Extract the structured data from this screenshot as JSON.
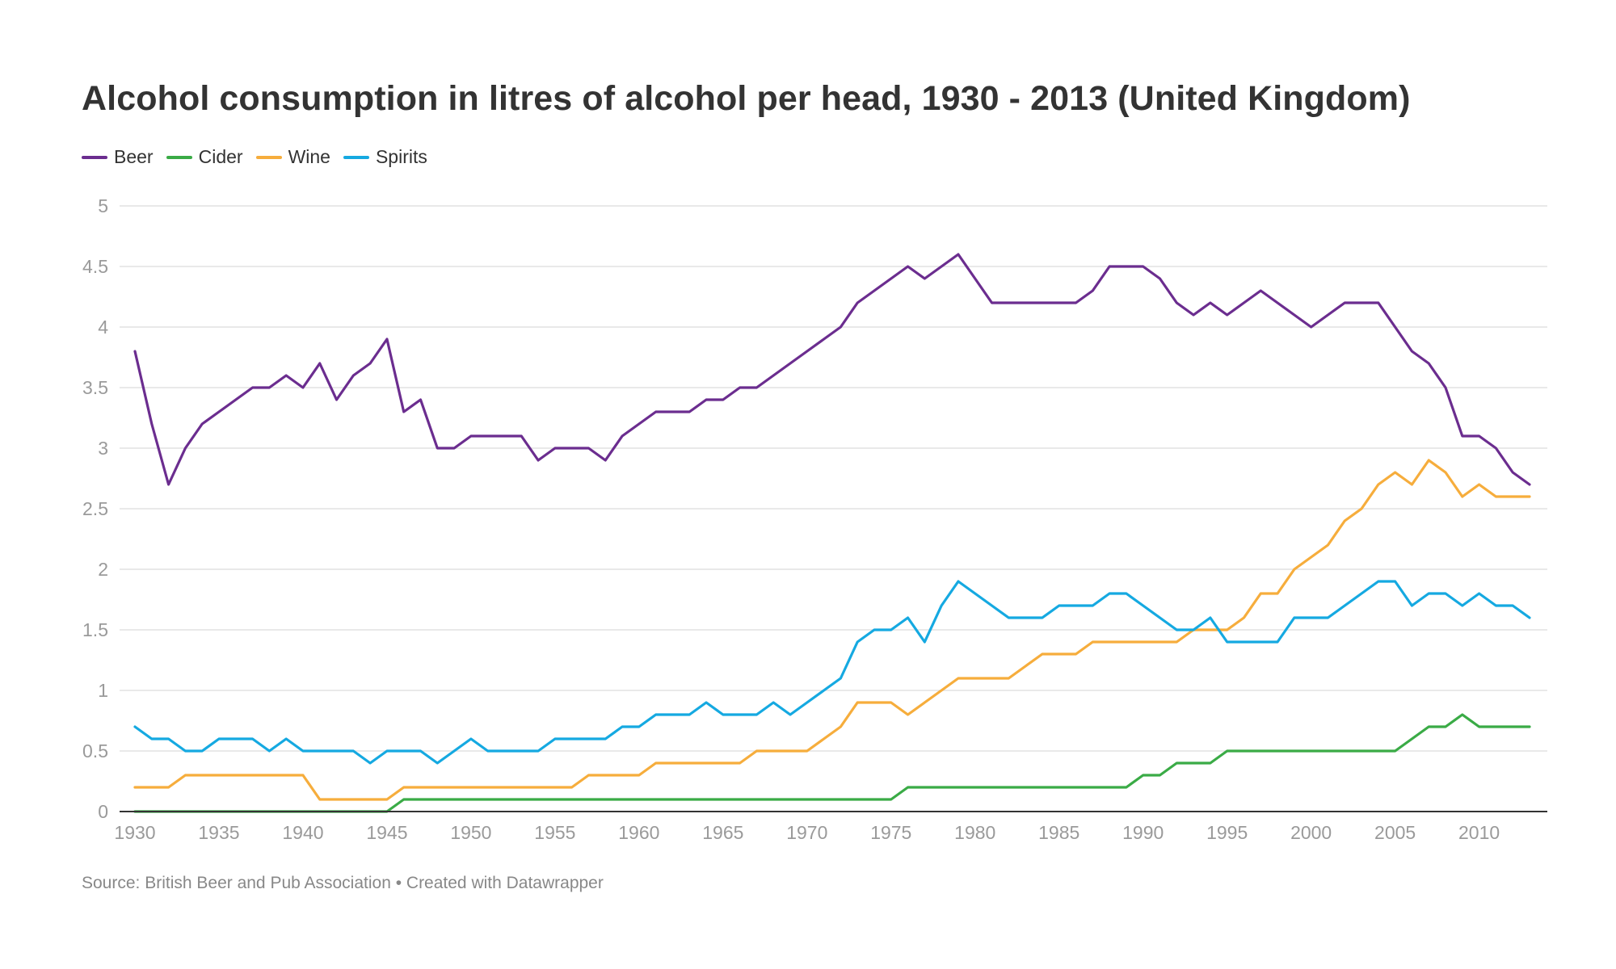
{
  "chart_data": {
    "type": "line",
    "title": "Alcohol consumption in litres of alcohol per head, 1930 - 2013 (United Kingdom)",
    "source": "Source: British Beer and Pub Association • Created with Datawrapper",
    "xlabel": "",
    "ylabel": "",
    "xlim": [
      1930,
      2013
    ],
    "ylim": [
      0,
      5
    ],
    "yticks": [
      "0",
      "0.5",
      "1",
      "1.5",
      "2",
      "2.5",
      "3",
      "3.5",
      "4",
      "4.5",
      "5"
    ],
    "xticks": [
      "1930",
      "1935",
      "1940",
      "1945",
      "1950",
      "1955",
      "1960",
      "1965",
      "1970",
      "1975",
      "1980",
      "1985",
      "1990",
      "1995",
      "2000",
      "2005",
      "2010"
    ],
    "grid": true,
    "legend_position": "top-left",
    "x": [
      1930,
      1931,
      1932,
      1933,
      1934,
      1935,
      1936,
      1937,
      1938,
      1939,
      1940,
      1941,
      1942,
      1943,
      1944,
      1945,
      1946,
      1947,
      1948,
      1949,
      1950,
      1951,
      1952,
      1953,
      1954,
      1955,
      1956,
      1957,
      1958,
      1959,
      1960,
      1961,
      1962,
      1963,
      1964,
      1965,
      1966,
      1967,
      1968,
      1969,
      1970,
      1971,
      1972,
      1973,
      1974,
      1975,
      1976,
      1977,
      1978,
      1979,
      1980,
      1981,
      1982,
      1983,
      1984,
      1985,
      1986,
      1987,
      1988,
      1989,
      1990,
      1991,
      1992,
      1993,
      1994,
      1995,
      1996,
      1997,
      1998,
      1999,
      2000,
      2001,
      2002,
      2003,
      2004,
      2005,
      2006,
      2007,
      2008,
      2009,
      2010,
      2011,
      2012,
      2013
    ],
    "series": [
      {
        "name": "Beer",
        "color": "#6b2d8f",
        "values": [
          3.8,
          3.2,
          2.7,
          3.0,
          3.2,
          3.3,
          3.4,
          3.5,
          3.5,
          3.6,
          3.5,
          3.7,
          3.4,
          3.6,
          3.7,
          3.9,
          3.3,
          3.4,
          3.0,
          3.0,
          3.1,
          3.1,
          3.1,
          3.1,
          2.9,
          3.0,
          3.0,
          3.0,
          2.9,
          3.1,
          3.2,
          3.3,
          3.3,
          3.3,
          3.4,
          3.4,
          3.5,
          3.5,
          3.6,
          3.7,
          3.8,
          3.9,
          4.0,
          4.2,
          4.3,
          4.4,
          4.5,
          4.4,
          4.5,
          4.6,
          4.4,
          4.2,
          4.2,
          4.2,
          4.2,
          4.2,
          4.2,
          4.3,
          4.5,
          4.5,
          4.5,
          4.4,
          4.2,
          4.1,
          4.2,
          4.1,
          4.2,
          4.3,
          4.2,
          4.1,
          4.0,
          4.1,
          4.2,
          4.2,
          4.2,
          4.0,
          3.8,
          3.7,
          3.5,
          3.1,
          3.1,
          3.0,
          2.8,
          2.7
        ]
      },
      {
        "name": "Cider",
        "color": "#3aab46",
        "values": [
          0,
          0,
          0,
          0,
          0,
          0,
          0,
          0,
          0,
          0,
          0,
          0,
          0,
          0,
          0,
          0,
          0.1,
          0.1,
          0.1,
          0.1,
          0.1,
          0.1,
          0.1,
          0.1,
          0.1,
          0.1,
          0.1,
          0.1,
          0.1,
          0.1,
          0.1,
          0.1,
          0.1,
          0.1,
          0.1,
          0.1,
          0.1,
          0.1,
          0.1,
          0.1,
          0.1,
          0.1,
          0.1,
          0.1,
          0.1,
          0.1,
          0.2,
          0.2,
          0.2,
          0.2,
          0.2,
          0.2,
          0.2,
          0.2,
          0.2,
          0.2,
          0.2,
          0.2,
          0.2,
          0.2,
          0.3,
          0.3,
          0.4,
          0.4,
          0.4,
          0.5,
          0.5,
          0.5,
          0.5,
          0.5,
          0.5,
          0.5,
          0.5,
          0.5,
          0.5,
          0.5,
          0.6,
          0.7,
          0.7,
          0.8,
          0.7,
          0.7,
          0.7,
          0.7
        ]
      },
      {
        "name": "Wine",
        "color": "#f6ad3c",
        "values": [
          0.2,
          0.2,
          0.2,
          0.3,
          0.3,
          0.3,
          0.3,
          0.3,
          0.3,
          0.3,
          0.3,
          0.1,
          0.1,
          0.1,
          0.1,
          0.1,
          0.2,
          0.2,
          0.2,
          0.2,
          0.2,
          0.2,
          0.2,
          0.2,
          0.2,
          0.2,
          0.2,
          0.3,
          0.3,
          0.3,
          0.3,
          0.4,
          0.4,
          0.4,
          0.4,
          0.4,
          0.4,
          0.5,
          0.5,
          0.5,
          0.5,
          0.6,
          0.7,
          0.9,
          0.9,
          0.9,
          0.8,
          0.9,
          1.0,
          1.1,
          1.1,
          1.1,
          1.1,
          1.2,
          1.3,
          1.3,
          1.3,
          1.4,
          1.4,
          1.4,
          1.4,
          1.4,
          1.4,
          1.5,
          1.5,
          1.5,
          1.6,
          1.8,
          1.8,
          2.0,
          2.1,
          2.2,
          2.4,
          2.5,
          2.7,
          2.8,
          2.7,
          2.9,
          2.8,
          2.6,
          2.7,
          2.6,
          2.6,
          2.6
        ]
      },
      {
        "name": "Spirits",
        "color": "#15a9e1",
        "values": [
          0.7,
          0.6,
          0.6,
          0.5,
          0.5,
          0.6,
          0.6,
          0.6,
          0.5,
          0.6,
          0.5,
          0.5,
          0.5,
          0.5,
          0.4,
          0.5,
          0.5,
          0.5,
          0.4,
          0.5,
          0.6,
          0.5,
          0.5,
          0.5,
          0.5,
          0.6,
          0.6,
          0.6,
          0.6,
          0.7,
          0.7,
          0.8,
          0.8,
          0.8,
          0.9,
          0.8,
          0.8,
          0.8,
          0.9,
          0.8,
          0.9,
          1.0,
          1.1,
          1.4,
          1.5,
          1.5,
          1.6,
          1.4,
          1.7,
          1.9,
          1.8,
          1.7,
          1.6,
          1.6,
          1.6,
          1.7,
          1.7,
          1.7,
          1.8,
          1.8,
          1.7,
          1.6,
          1.5,
          1.5,
          1.6,
          1.4,
          1.4,
          1.4,
          1.4,
          1.6,
          1.6,
          1.6,
          1.7,
          1.8,
          1.9,
          1.9,
          1.7,
          1.8,
          1.8,
          1.7,
          1.8,
          1.7,
          1.7,
          1.6
        ]
      }
    ]
  }
}
